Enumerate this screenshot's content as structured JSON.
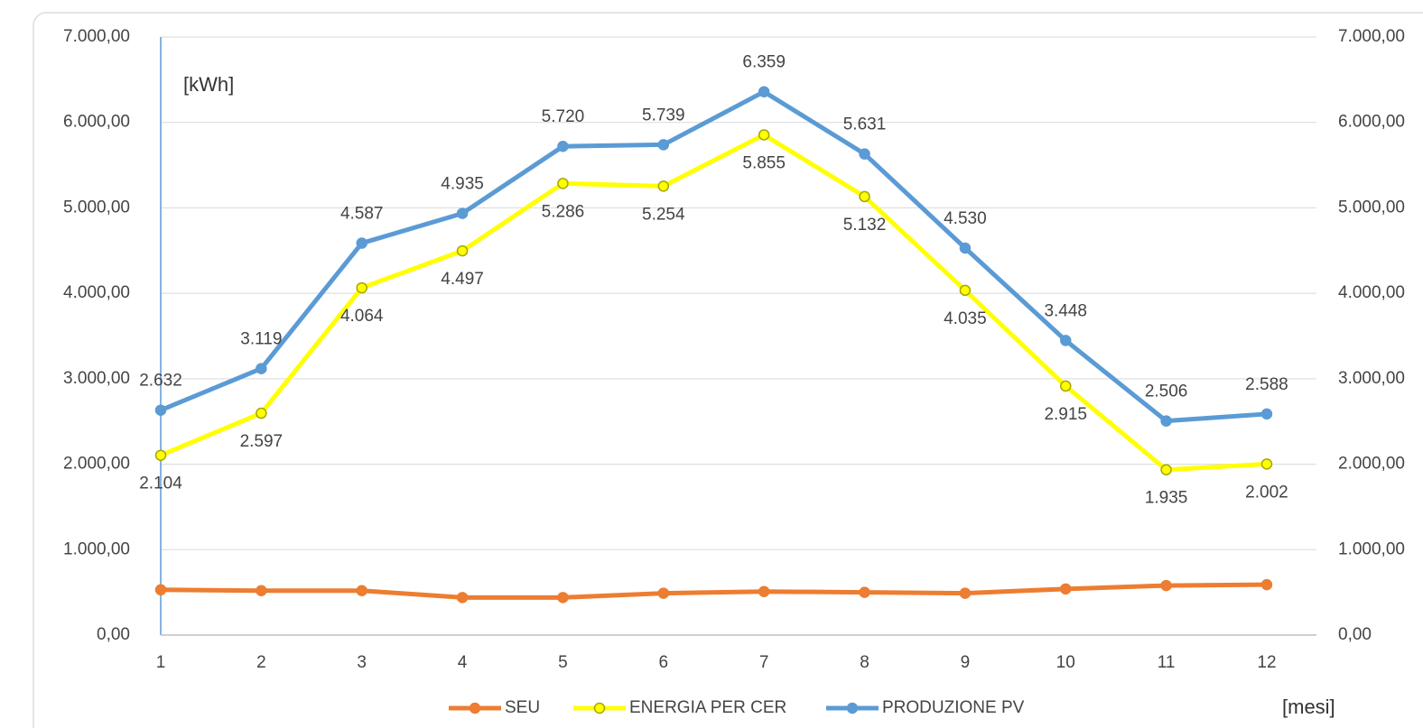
{
  "chart_data": {
    "type": "line",
    "categories": [
      "1",
      "2",
      "3",
      "4",
      "5",
      "6",
      "7",
      "8",
      "9",
      "10",
      "11",
      "12"
    ],
    "series": [
      {
        "name": "SEU",
        "color": "#ed7d31",
        "values": [
          530,
          520,
          520,
          440,
          440,
          490,
          510,
          500,
          490,
          540,
          580,
          590
        ]
      },
      {
        "name": "ENERGIA PER CER",
        "color": "#ffff00",
        "values": [
          2104,
          2597,
          4064,
          4497,
          5286,
          5254,
          5855,
          5132,
          4035,
          2915,
          1935,
          2002
        ],
        "value_labels": [
          "2.104",
          "2.597",
          "4.064",
          "4.497",
          "5.286",
          "5.254",
          "5.855",
          "5.132",
          "4.035",
          "2.915",
          "1.935",
          "2.002"
        ]
      },
      {
        "name": "PRODUZIONE PV",
        "color": "#5b9bd5",
        "values": [
          2632,
          3119,
          4587,
          4935,
          5720,
          5739,
          6359,
          5631,
          4530,
          3448,
          2506,
          2588
        ],
        "value_labels": [
          "2.632",
          "3.119",
          "4.587",
          "4.935",
          "5.720",
          "5.739",
          "6.359",
          "5.631",
          "4.530",
          "3.448",
          "2.506",
          "2.588"
        ]
      }
    ],
    "ylim": [
      0,
      7000
    ],
    "yticks": [
      {
        "value": 0,
        "label": "0,00"
      },
      {
        "value": 1000,
        "label": "1.000,00"
      },
      {
        "value": 2000,
        "label": "2.000,00"
      },
      {
        "value": 3000,
        "label": "3.000,00"
      },
      {
        "value": 4000,
        "label": "4.000,00"
      },
      {
        "value": 5000,
        "label": "5.000,00"
      },
      {
        "value": 6000,
        "label": "6.000,00"
      },
      {
        "value": 7000,
        "label": "7.000,00"
      }
    ],
    "y2lim": [
      0,
      7000
    ],
    "y2ticks": [
      {
        "value": 0,
        "label": "0,00"
      },
      {
        "value": 1000,
        "label": "1.000,00"
      },
      {
        "value": 2000,
        "label": "2.000,00"
      },
      {
        "value": 3000,
        "label": "3.000,00"
      },
      {
        "value": 4000,
        "label": "4.000,00"
      },
      {
        "value": 5000,
        "label": "5.000,00"
      },
      {
        "value": 6000,
        "label": "6.000,00"
      },
      {
        "value": 7000,
        "label": "7.000,00"
      }
    ],
    "y_unit_label": "[kWh]",
    "x_unit_label": "[mesi]",
    "grid": true,
    "legend": "bottom"
  }
}
